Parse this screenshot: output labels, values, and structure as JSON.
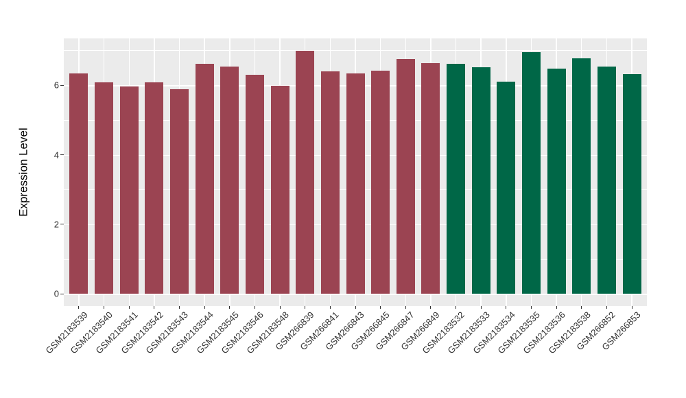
{
  "chart_data": {
    "type": "bar",
    "title": "",
    "xlabel": "",
    "ylabel": "Expression Level",
    "ylim": [
      -0.35,
      7.35
    ],
    "yticks": [
      0,
      2,
      4,
      6
    ],
    "grid": {
      "major_y": [
        0,
        2,
        4,
        6
      ],
      "minor_y": [
        1,
        3,
        5,
        7
      ],
      "vertical_major": "one white gridline at each bar center",
      "color": "#FFFFFF"
    },
    "panel_background": "#EBEBEB",
    "figure_background": "#FFFFFF",
    "legend": "none",
    "axis_text_color": "#303030",
    "group_colors": {
      "maroon": "#9B4452",
      "green": "#006747"
    },
    "bars": [
      {
        "label": "GSM2183539",
        "value": 6.33,
        "group": "maroon"
      },
      {
        "label": "GSM2183540",
        "value": 6.08,
        "group": "maroon"
      },
      {
        "label": "GSM2183541",
        "value": 5.97,
        "group": "maroon"
      },
      {
        "label": "GSM2183542",
        "value": 6.08,
        "group": "maroon"
      },
      {
        "label": "GSM2183543",
        "value": 5.88,
        "group": "maroon"
      },
      {
        "label": "GSM2183544",
        "value": 6.62,
        "group": "maroon"
      },
      {
        "label": "GSM2183545",
        "value": 6.53,
        "group": "maroon"
      },
      {
        "label": "GSM2183546",
        "value": 6.3,
        "group": "maroon"
      },
      {
        "label": "GSM2183548",
        "value": 5.98,
        "group": "maroon"
      },
      {
        "label": "GSM266839",
        "value": 6.98,
        "group": "maroon"
      },
      {
        "label": "GSM266841",
        "value": 6.4,
        "group": "maroon"
      },
      {
        "label": "GSM266843",
        "value": 6.33,
        "group": "maroon"
      },
      {
        "label": "GSM266845",
        "value": 6.42,
        "group": "maroon"
      },
      {
        "label": "GSM266847",
        "value": 6.76,
        "group": "maroon"
      },
      {
        "label": "GSM266849",
        "value": 6.63,
        "group": "maroon"
      },
      {
        "label": "GSM2183532",
        "value": 6.62,
        "group": "green"
      },
      {
        "label": "GSM2183533",
        "value": 6.51,
        "group": "green"
      },
      {
        "label": "GSM2183534",
        "value": 6.11,
        "group": "green"
      },
      {
        "label": "GSM2183535",
        "value": 6.94,
        "group": "green"
      },
      {
        "label": "GSM2183536",
        "value": 6.48,
        "group": "green"
      },
      {
        "label": "GSM2183538",
        "value": 6.77,
        "group": "green"
      },
      {
        "label": "GSM266852",
        "value": 6.54,
        "group": "green"
      },
      {
        "label": "GSM266853",
        "value": 6.32,
        "group": "green"
      }
    ]
  }
}
